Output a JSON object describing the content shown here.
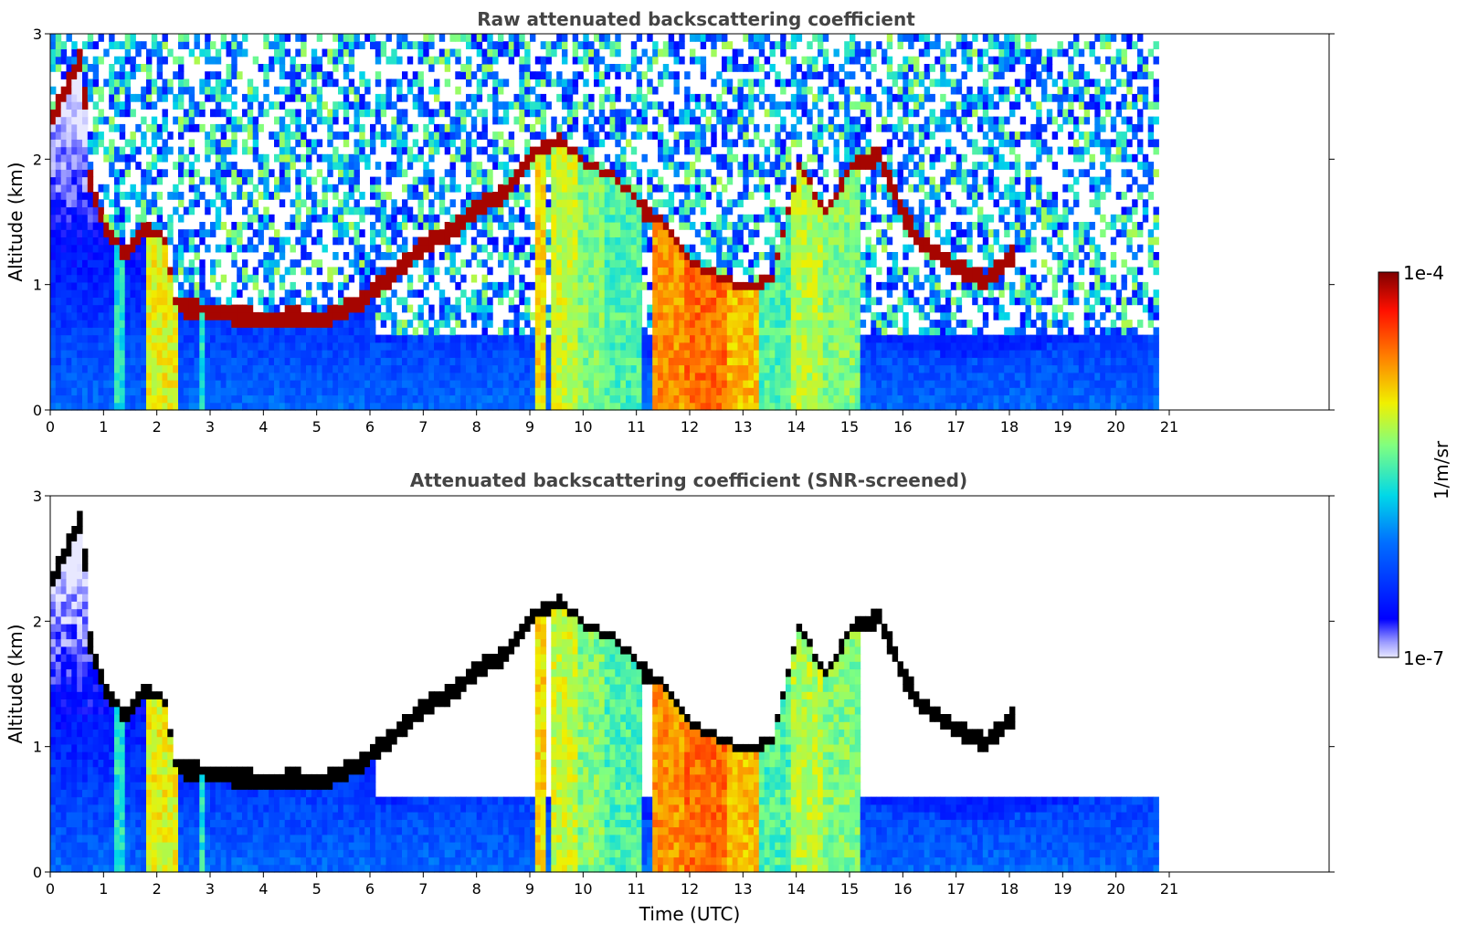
{
  "chart_data": [
    {
      "type": "heatmap",
      "title": "Raw attenuated backscattering coefficient",
      "xlabel": "",
      "ylabel": "Altitude (km)",
      "xlim": [
        0,
        24
      ],
      "ylim": [
        0,
        3
      ],
      "xticks": [
        "0",
        "1",
        "2",
        "3",
        "4",
        "5",
        "6",
        "7",
        "8",
        "9",
        "10",
        "11",
        "12",
        "13",
        "14",
        "15",
        "16",
        "17",
        "18",
        "19",
        "20",
        "21"
      ],
      "yticks": [
        "0",
        "1",
        "2",
        "3"
      ],
      "data_end_hour": 20.8,
      "features": {
        "cloud_layer_hours": [
          0,
          0.6,
          1.0,
          1.5,
          2.2,
          3.0,
          4.0,
          5.0,
          5.8
        ],
        "cloud_layer_km": [
          2.3,
          2.8,
          1.6,
          1.3,
          0.8,
          0.75,
          0.7,
          0.7,
          0.85
        ],
        "precip_bands_hours": [
          [
            1.8,
            2.3
          ],
          [
            9.0,
            10.3
          ],
          [
            11.2,
            13.2
          ],
          [
            14.0,
            15.1
          ]
        ]
      }
    },
    {
      "type": "heatmap",
      "title": "Attenuated backscattering coefficient (SNR-screened)",
      "xlabel": "Time (UTC)",
      "ylabel": "Altitude (km)",
      "xlim": [
        0,
        24
      ],
      "ylim": [
        0,
        3
      ],
      "xticks": [
        "0",
        "1",
        "2",
        "3",
        "4",
        "5",
        "6",
        "7",
        "8",
        "9",
        "10",
        "11",
        "12",
        "13",
        "14",
        "15",
        "16",
        "17",
        "18",
        "19",
        "20",
        "21"
      ],
      "yticks": [
        "0",
        "1",
        "2",
        "3"
      ],
      "data_end_hour": 20.8
    }
  ],
  "colorbar": {
    "label": "1/m/sr",
    "max_label": "1e-4",
    "min_label": "1e-7",
    "scale": "log",
    "range": [
      1e-07,
      0.0001
    ],
    "colormap": "jet"
  }
}
